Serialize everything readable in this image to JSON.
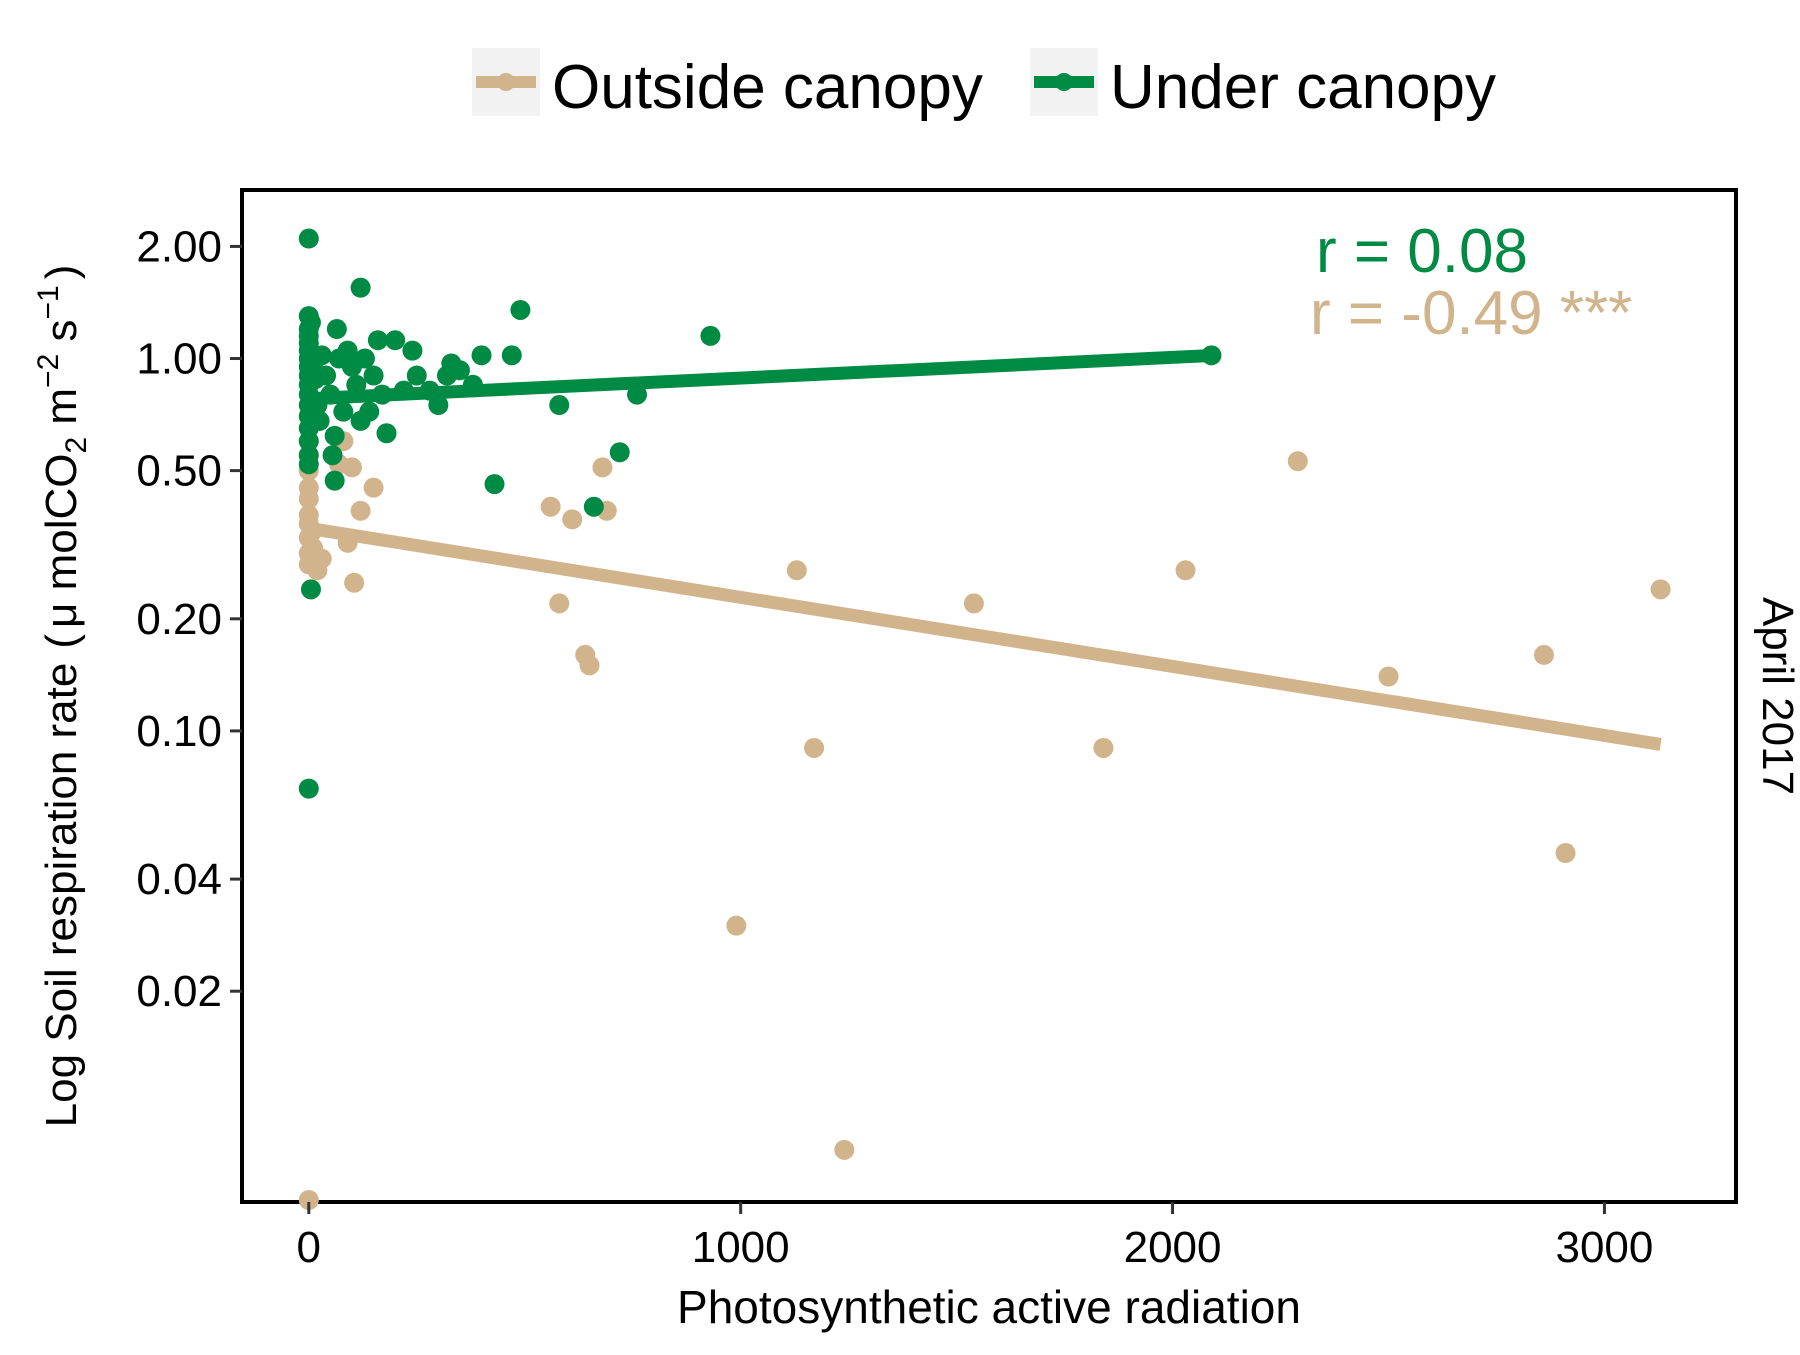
{
  "chart_data": {
    "type": "scatter",
    "xlabel": "Photosynthetic active radiation",
    "ylabel": "Log Soil respiration rate",
    "ylabel_unit": {
      "open": "(",
      "mu": "μ",
      "base": " molCO",
      "sub": "2",
      "m": " m",
      "m_exp": "−2",
      "s": " s",
      "s_exp": "−1",
      "close": ")"
    },
    "facet_label": "April 2017",
    "x_scale": "linear",
    "y_scale": "log",
    "xlim": [
      -150,
      3300
    ],
    "ylim": [
      0.0055,
      2.8
    ],
    "x_ticks": [
      0,
      1000,
      2000,
      3000
    ],
    "x_tick_labels": [
      "0",
      "1000",
      "2000",
      "3000"
    ],
    "y_ticks": [
      0.02,
      0.04,
      0.1,
      0.2,
      0.5,
      1,
      2
    ],
    "y_tick_labels": [
      "0.02",
      "0.04",
      "0.10",
      "0.20",
      "0.50",
      "1.00",
      "2.00"
    ],
    "grid": false,
    "legend_position": "top",
    "series": [
      {
        "name": "Outside canopy",
        "color": "#D2B48C",
        "annotation": "r = -0.49 ***",
        "fit": {
          "x": [
            0,
            3130
          ],
          "y": [
            0.35,
            0.092
          ]
        },
        "points": [
          [
            0,
            0.0055
          ],
          [
            1240,
            0.0075
          ],
          [
            990,
            0.03
          ],
          [
            1170,
            0.09
          ],
          [
            1840,
            0.09
          ],
          [
            2910,
            0.047
          ],
          [
            2500,
            0.14
          ],
          [
            2860,
            0.16
          ],
          [
            3130,
            0.24
          ],
          [
            2030,
            0.27
          ],
          [
            2290,
            0.53
          ],
          [
            1540,
            0.22
          ],
          [
            1130,
            0.27
          ],
          [
            640,
            0.16
          ],
          [
            650,
            0.15
          ],
          [
            580,
            0.22
          ],
          [
            560,
            0.4
          ],
          [
            610,
            0.37
          ],
          [
            690,
            0.39
          ],
          [
            680,
            0.51
          ],
          [
            150,
            0.45
          ],
          [
            120,
            0.39
          ],
          [
            90,
            0.32
          ],
          [
            105,
            0.25
          ],
          [
            100,
            0.51
          ],
          [
            80,
            0.6
          ],
          [
            70,
            0.52
          ],
          [
            30,
            0.29
          ],
          [
            20,
            0.27
          ],
          [
            10,
            0.31
          ],
          [
            0,
            0.28
          ],
          [
            0,
            0.3
          ],
          [
            0,
            0.33
          ],
          [
            0,
            0.36
          ],
          [
            0,
            0.38
          ],
          [
            0,
            0.42
          ],
          [
            0,
            0.45
          ],
          [
            0,
            0.5
          ],
          [
            0,
            0.55
          ],
          [
            5,
            0.34
          ]
        ]
      },
      {
        "name": "Under canopy",
        "color": "#008B45",
        "annotation": "r = 0.08",
        "fit": {
          "x": [
            0,
            2100
          ],
          "y": [
            0.78,
            1.02
          ]
        },
        "points": [
          [
            0,
            2.1
          ],
          [
            0,
            0.07
          ],
          [
            5,
            0.24
          ],
          [
            0,
            1.3
          ],
          [
            0,
            1.2
          ],
          [
            0,
            1.15
          ],
          [
            0,
            1.1
          ],
          [
            0,
            1.05
          ],
          [
            0,
            1.0
          ],
          [
            0,
            0.95
          ],
          [
            0,
            0.9
          ],
          [
            0,
            0.85
          ],
          [
            0,
            0.8
          ],
          [
            0,
            0.75
          ],
          [
            0,
            0.7
          ],
          [
            0,
            0.65
          ],
          [
            0,
            0.6
          ],
          [
            0,
            0.55
          ],
          [
            0,
            0.52
          ],
          [
            5,
            1.25
          ],
          [
            10,
            0.97
          ],
          [
            15,
            0.88
          ],
          [
            20,
            0.75
          ],
          [
            25,
            0.68
          ],
          [
            30,
            1.02
          ],
          [
            40,
            0.9
          ],
          [
            50,
            0.8
          ],
          [
            55,
            0.55
          ],
          [
            60,
            0.47
          ],
          [
            60,
            0.62
          ],
          [
            65,
            1.2
          ],
          [
            70,
            1.0
          ],
          [
            80,
            0.72
          ],
          [
            90,
            1.05
          ],
          [
            100,
            0.95
          ],
          [
            110,
            0.85
          ],
          [
            120,
            1.55
          ],
          [
            120,
            0.68
          ],
          [
            130,
            1.0
          ],
          [
            140,
            0.72
          ],
          [
            150,
            0.9
          ],
          [
            160,
            1.12
          ],
          [
            170,
            0.8
          ],
          [
            180,
            0.63
          ],
          [
            200,
            1.12
          ],
          [
            220,
            0.82
          ],
          [
            240,
            1.05
          ],
          [
            250,
            0.9
          ],
          [
            280,
            0.82
          ],
          [
            300,
            0.75
          ],
          [
            320,
            0.9
          ],
          [
            330,
            0.97
          ],
          [
            350,
            0.93
          ],
          [
            380,
            0.85
          ],
          [
            400,
            1.02
          ],
          [
            430,
            0.46
          ],
          [
            470,
            1.02
          ],
          [
            490,
            1.35
          ],
          [
            580,
            0.75
          ],
          [
            660,
            0.4
          ],
          [
            720,
            0.56
          ],
          [
            760,
            0.8
          ],
          [
            930,
            1.15
          ],
          [
            2090,
            1.02
          ]
        ]
      }
    ]
  }
}
